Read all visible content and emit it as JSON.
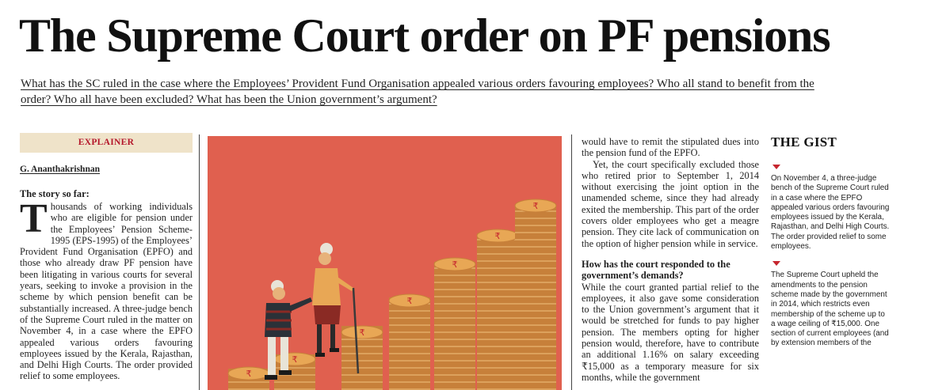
{
  "headline": "The Supreme Court order on PF pensions",
  "deck": "What has the SC ruled in the case where the Employees’ Provident Fund Organisation appealed various orders favouring employees? Who all stand to benefit from the order? Who all have been excluded? What has been the Union government’s argument?",
  "tag": "EXPLAINER",
  "byline": "G. Ananthakrishnan",
  "col1": {
    "heading": "The story so far:",
    "dropcap": "T",
    "body": "housands of working individuals who are eligible for pension under the Employees’ Pension Scheme-1995 (EPS-1995) of the Employees’ Provident Fund Organisation (EPFO) and those who already draw PF pension have been litigating in various courts for several years, seeking to invoke a provision in the scheme by which pension benefit can be substantially increased. A three-judge bench of the Supreme Court ruled in the matter on November 4, in a case where the EPFO appealed various orders favouring employees issued by the Kerala, Rajasthan, and Delhi High Courts. The order provided relief to some employees."
  },
  "col3": {
    "p1": "would have to remit the stipulated dues into the pension fund of the EPFO.",
    "p2": "Yet, the court specifically excluded those who retired prior to September 1, 2014 without exercising the joint option in the unamended scheme, since they had already exited the membership. This part of the order covers older employees who get a meagre pension. They cite lack of communication on the option of higher pension while in service.",
    "heading": "How has the court responded to the government’s demands?",
    "p3": "While the court granted partial relief to the employees, it also gave some consideration to the Union government’s argument that it would be stretched for funds to pay higher pension. The members opting for higher pension would, therefore, have to contribute an additional 1.16% on salary exceeding ₹15,000 as a temporary measure for six months, while the government"
  },
  "gist": {
    "title": "THE GIST",
    "items": [
      "On November 4, a three-judge bench of the Supreme Court ruled in a case where the EPFO appealed various orders favouring employees issued by the Kerala, Rajasthan, and Delhi High Courts. The order provided relief to some employees.",
      "The Supreme Court upheld the amendments to the pension scheme made by the government in 2014, which restricts even membership of the scheme up to a wage ceiling of ₹15,000. One section of current employees (and by extension members of the"
    ]
  },
  "illustration": {
    "coin_symbol": "₹",
    "colors": {
      "background": "#e0604f",
      "coin": "#e8a755",
      "coin_dark": "#c7803a",
      "accent": "#c6262e"
    }
  }
}
